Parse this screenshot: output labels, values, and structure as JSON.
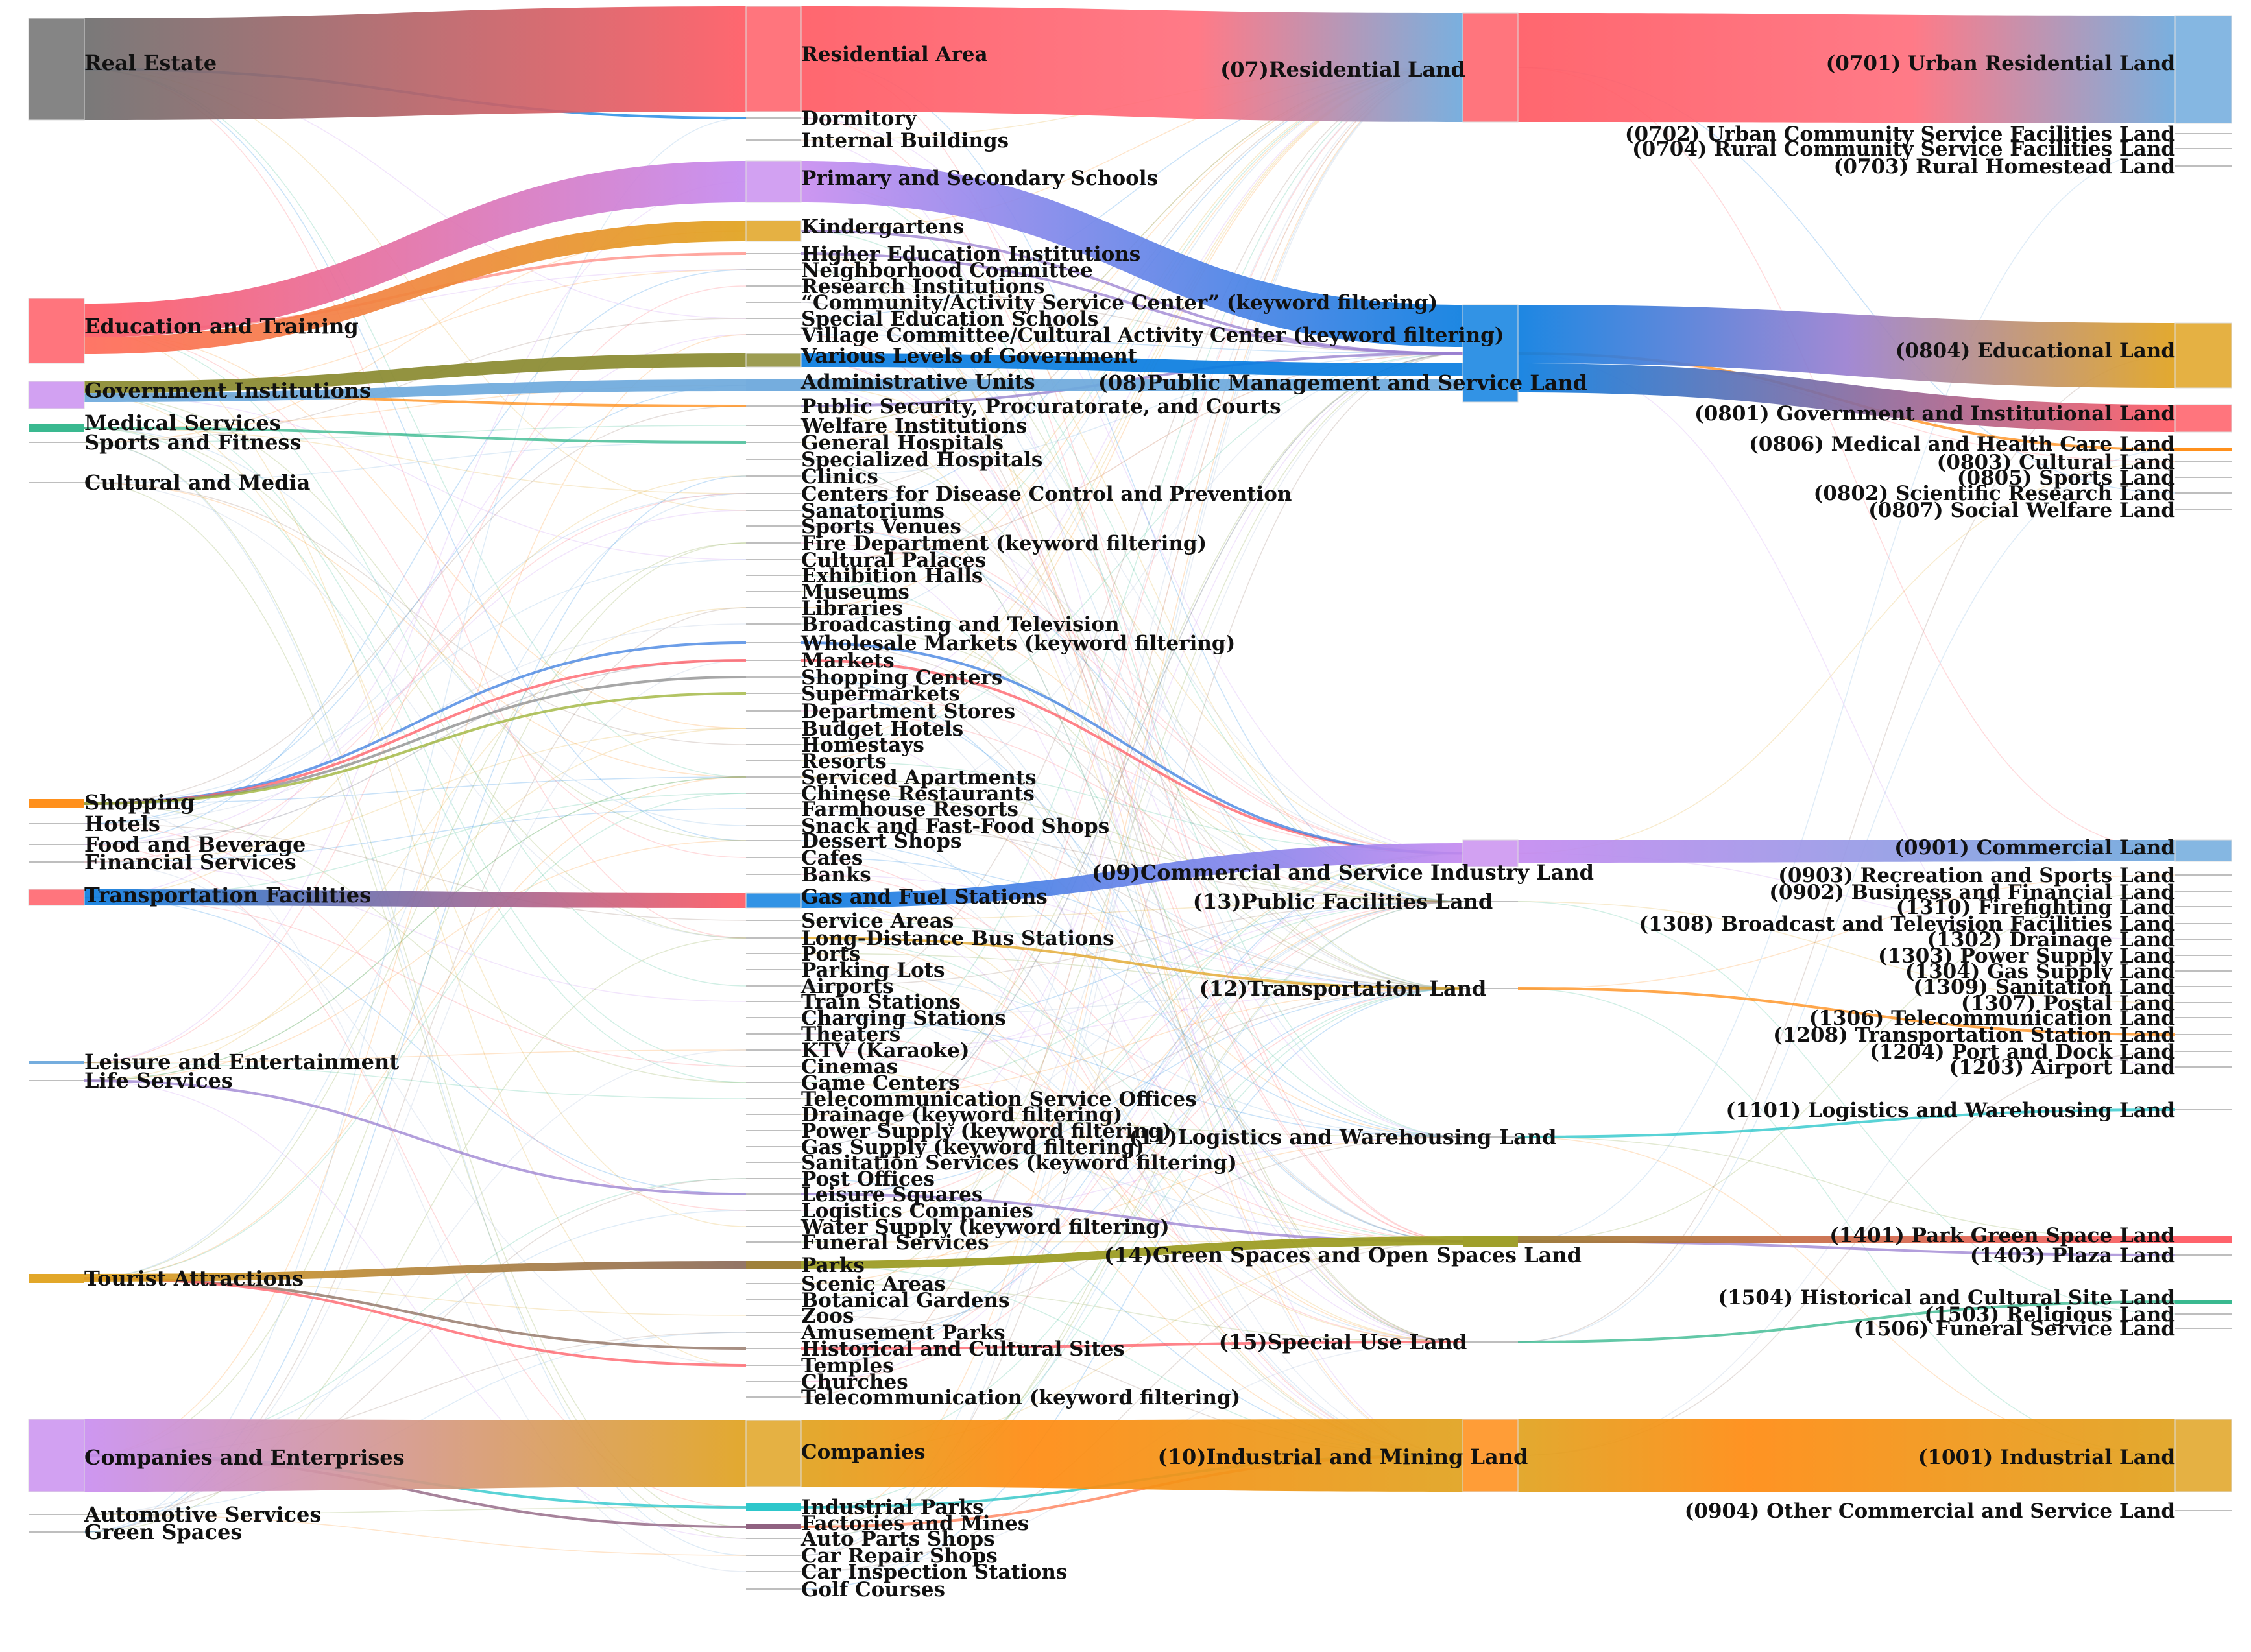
{
  "chart_data": {
    "type": "sankey",
    "columns": [
      {
        "name": "poi_primary_category",
        "nodes": [
          "Real Estate",
          "Education and Training",
          "Government Institutions",
          "Medical Services",
          "Sports and Fitness",
          "Cultural and Media",
          "Shopping",
          "Hotels",
          "Food and Beverage",
          "Financial Services",
          "Transportation Facilities",
          "Leisure and Entertainment",
          "Life Services",
          "Tourist Attractions",
          "Companies and Enterprises",
          "Automotive Services",
          "Green Spaces"
        ]
      },
      {
        "name": "poi_secondary_category",
        "nodes": [
          "Residential Area",
          "Dormitory",
          "Internal Buildings",
          "Primary and Secondary Schools",
          "Kindergartens",
          "Higher Education Institutions",
          "Neighborhood Committee",
          "Research Institutions",
          "“Community/Activity Service Center” (keyword filtering)",
          "Special Education Schools",
          "Village Committee/Cultural Activity Center (keyword filtering)",
          "Various Levels of Government",
          "Administrative Units",
          "Public Security, Procuratorate, and Courts",
          "Welfare Institutions",
          "General Hospitals",
          "Specialized Hospitals",
          "Clinics",
          "Centers for Disease Control and Prevention",
          "Sanatoriums",
          "Sports Venues",
          "Fire Department (keyword filtering)",
          "Cultural Palaces",
          "Exhibition Halls",
          "Museums",
          "Libraries",
          "Broadcasting and Television",
          "Wholesale Markets (keyword filtering)",
          "Markets",
          "Shopping Centers",
          "Supermarkets",
          "Department Stores",
          "Budget Hotels",
          "Homestays",
          "Resorts",
          "Serviced Apartments",
          "Chinese Restaurants",
          "Farmhouse Resorts",
          "Snack and Fast-Food Shops",
          "Dessert Shops",
          "Cafes",
          "Banks",
          "Gas and Fuel Stations",
          "Service Areas",
          "Long-Distance Bus Stations",
          "Ports",
          "Parking Lots",
          "Airports",
          "Train Stations",
          "Charging Stations",
          "Theaters",
          "KTV (Karaoke)",
          "Cinemas",
          "Game Centers",
          "Telecommunication Service Offices",
          "Drainage (keyword filtering)",
          "Power Supply (keyword filtering)",
          "Gas Supply (keyword filtering)",
          "Sanitation Services (keyword filtering)",
          "Post Offices",
          "Leisure Squares",
          "Logistics Companies",
          "Water Supply (keyword filtering)",
          "Funeral Services",
          "Parks",
          "Scenic Areas",
          "Botanical Gardens",
          "Zoos",
          "Amusement Parks",
          "Historical and Cultural Sites",
          "Temples",
          "Churches",
          "Telecommunication (keyword filtering)",
          "Companies",
          "Industrial Parks",
          "Factories and Mines",
          "Auto Parts Shops",
          "Car Repair Shops",
          "Car Inspection Stations",
          "Golf Courses"
        ]
      },
      {
        "name": "land_use_level_1",
        "nodes": [
          "(07)Residential Land",
          "(08)Public Management and Service Land",
          "(09)Commercial and Service Industry Land",
          "(13)Public Facilities Land",
          "(12)Transportation Land",
          "(11)Logistics and Warehousing Land",
          "(14)Green Spaces and Open Spaces Land",
          "(15)Special Use Land",
          "(10)Industrial and Mining Land"
        ]
      },
      {
        "name": "land_use_level_2",
        "nodes": [
          "(0701) Urban Residential Land",
          "(0702) Urban Community Service Facilities Land",
          "(0704) Rural Community Service Facilities Land",
          "(0703) Rural Homestead Land",
          "(0804) Educational Land",
          "(0801) Government and Institutional Land",
          "(0806) Medical and Health Care Land",
          "(0803) Cultural Land",
          "(0805) Sports Land",
          "(0802) Scientific Research Land",
          "(0807) Social Welfare Land",
          "(0901) Commercial Land",
          "(0903) Recreation and Sports Land",
          "(0902) Business and Financial Land",
          "(1310) Firefighting Land",
          "(1308) Broadcast and Television Facilities Land",
          "(1302) Drainage Land",
          "(1303) Power Supply Land",
          "(1304) Gas Supply Land",
          "(1309) Sanitation Land",
          "(1307) Postal Land",
          "(1306) Telecommunication Land",
          "(1208) Transportation Station Land",
          "(1204) Port and Dock Land",
          "(1203) Airport Land",
          "(1101) Logistics and Warehousing Land",
          "(1401) Park Green Space Land",
          "(1403) Plaza Land",
          "(1504) Historical and Cultural Site Land",
          "(1503) Religious Land",
          "(1506) Funeral Service Land",
          "(1001) Industrial Land",
          "(0904) Other Commercial and Service Land"
        ]
      }
    ],
    "flows": [
      {
        "source": "Real Estate",
        "target": "Residential Area",
        "strength": "major"
      },
      {
        "source": "Education and Training",
        "target": "Primary and Secondary Schools",
        "strength": "major"
      },
      {
        "source": "Education and Training",
        "target": "Kindergartens",
        "strength": "major"
      },
      {
        "source": "Transportation Facilities",
        "target": "Gas and Fuel Stations",
        "strength": "major"
      },
      {
        "source": "Tourist Attractions",
        "target": "Parks",
        "strength": "major"
      },
      {
        "source": "Companies and Enterprises",
        "target": "Companies",
        "strength": "major"
      },
      {
        "source": "Residential Area",
        "target": "(07)Residential Land",
        "strength": "major"
      },
      {
        "source": "Primary and Secondary Schools",
        "target": "(08)Public Management and Service Land",
        "strength": "major"
      },
      {
        "source": "Gas and Fuel Stations",
        "target": "(09)Commercial and Service Industry Land",
        "strength": "major"
      },
      {
        "source": "Parks",
        "target": "(14)Green Spaces and Open Spaces Land",
        "strength": "major"
      },
      {
        "source": "Companies",
        "target": "(10)Industrial and Mining Land",
        "strength": "major"
      },
      {
        "source": "(07)Residential Land",
        "target": "(0701) Urban Residential Land",
        "strength": "major"
      },
      {
        "source": "(08)Public Management and Service Land",
        "target": "(0804) Educational Land",
        "strength": "major"
      },
      {
        "source": "(08)Public Management and Service Land",
        "target": "(0801) Government and Institutional Land",
        "strength": "major"
      },
      {
        "source": "(09)Commercial and Service Industry Land",
        "target": "(0901) Commercial Land",
        "strength": "major"
      },
      {
        "source": "(14)Green Spaces and Open Spaces Land",
        "target": "(1401) Park Green Space Land",
        "strength": "major"
      },
      {
        "source": "(10)Industrial and Mining Land",
        "target": "(1001) Industrial Land",
        "strength": "major"
      }
    ],
    "title": "",
    "legend": "none"
  }
}
